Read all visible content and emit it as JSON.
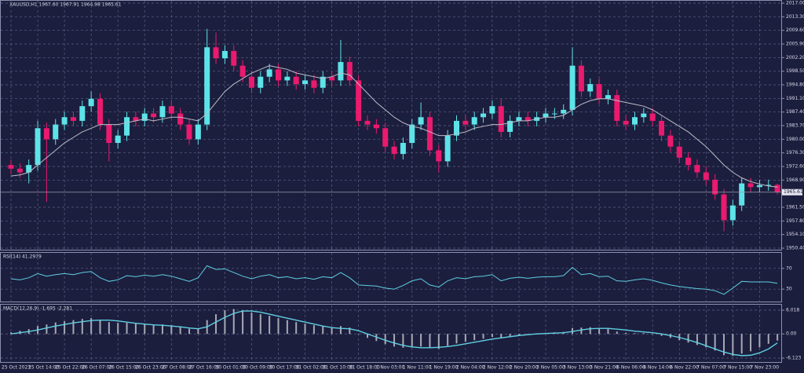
{
  "chart_data": [
    {
      "type": "candlestick",
      "title": "XAUUSD,H1  1967.60 1967.91 1964.98 1965.61",
      "open": [
        1973,
        1972,
        1971,
        1973,
        1983,
        1980,
        1984,
        1986,
        1985,
        1989,
        1991,
        1984,
        1979,
        1981,
        1986,
        1985,
        1987,
        1986,
        1989,
        1987,
        1984,
        1980,
        1984,
        2005,
        2002,
        2004,
        2000,
        1997,
        1994,
        1997,
        1999,
        1996,
        1997,
        1995,
        1996,
        1994,
        1997,
        1996,
        2001,
        1996,
        1985,
        1984,
        1983,
        1978,
        1976,
        1979,
        1984,
        1986,
        1977,
        1974,
        1981,
        1985,
        1984,
        1986,
        1987,
        1989,
        1982,
        1985,
        1986,
        1985,
        1986,
        1987,
        1987,
        1988,
        2000,
        1993,
        1995,
        1991,
        1992,
        1985,
        1984,
        1986,
        1987,
        1985,
        1981,
        1978,
        1975,
        1973,
        1971,
        1969,
        1965,
        1958,
        1962,
        1968,
        1967,
        1967.5,
        1967.6
      ],
      "high": [
        1974.5,
        1973.5,
        1974.5,
        1985,
        1984.5,
        1985.5,
        1987.5,
        1987.5,
        1990.5,
        1993,
        1992.5,
        1985.5,
        1982.5,
        1987.5,
        1987.5,
        1988.5,
        1988.5,
        1990.5,
        1990.5,
        1988.5,
        1985.5,
        1985.5,
        2010,
        2009,
        2005.5,
        2005.5,
        2001.5,
        1998.5,
        1998.5,
        2000.5,
        2000.5,
        1998.5,
        1998.5,
        1997.5,
        1997.5,
        1998.5,
        1998.5,
        2007,
        2002.5,
        1997.5,
        1986.5,
        1985.5,
        1984.5,
        1979.5,
        1980.5,
        1985.5,
        1990,
        1987.5,
        1978.5,
        1982.5,
        1986.5,
        1986.5,
        1987.5,
        1988.5,
        1990.5,
        1991,
        1986.5,
        1987.5,
        1987.5,
        1987.5,
        1988.5,
        1988.5,
        1989.5,
        2005,
        2001.5,
        1996.5,
        1996.5,
        1993.5,
        1993.5,
        1986.5,
        1987.5,
        1988.5,
        1988.5,
        1986.5,
        1982.5,
        1979.5,
        1976.5,
        1974.5,
        1972.5,
        1970.5,
        1966.5,
        1963.5,
        1969.5,
        1969.5,
        1969,
        1969,
        1967.91
      ],
      "low": [
        1970.5,
        1969.5,
        1968,
        1971.5,
        1963,
        1978.5,
        1982.5,
        1983.5,
        1983.5,
        1987.5,
        1982.5,
        1974,
        1977.5,
        1979.5,
        1983.5,
        1983.5,
        1984.5,
        1984.5,
        1985.5,
        1982.5,
        1978.5,
        1978.5,
        1982.5,
        2000.5,
        2000.5,
        1998.5,
        1995.5,
        1992.5,
        1992.5,
        1995.5,
        1994.5,
        1994.5,
        1993.5,
        1993.5,
        1992.5,
        1992.5,
        1994.5,
        1994.5,
        1994.5,
        1983.5,
        1982.5,
        1981.5,
        1976.5,
        1974.5,
        1974.5,
        1977.5,
        1982.5,
        1975.5,
        1971,
        1972.5,
        1979.5,
        1982.5,
        1982.5,
        1984.5,
        1985.5,
        1980.5,
        1980.5,
        1983.5,
        1983.5,
        1983.5,
        1984.5,
        1985.5,
        1985.5,
        1986.5,
        1991.5,
        1991.5,
        1989.5,
        1989.5,
        1983.5,
        1982.5,
        1982.5,
        1984.5,
        1983.5,
        1979.5,
        1976.5,
        1973.5,
        1971.5,
        1969.5,
        1967.5,
        1963.5,
        1955,
        1956.5,
        1960.5,
        1965.5,
        1965.5,
        1966,
        1964.98
      ],
      "close": [
        1972,
        1971,
        1973,
        1983,
        1980,
        1984,
        1986,
        1985,
        1989,
        1991,
        1984,
        1979,
        1981,
        1986,
        1985,
        1987,
        1986,
        1989,
        1987,
        1984,
        1980,
        1984,
        2005,
        2002,
        2004,
        2000,
        1997,
        1994,
        1997,
        1999,
        1996,
        1997,
        1995,
        1996,
        1994,
        1997,
        1996,
        2001,
        1996,
        1985,
        1984,
        1983,
        1978,
        1976,
        1979,
        1984,
        1986,
        1977,
        1974,
        1981,
        1985,
        1984,
        1986,
        1987,
        1989,
        1982,
        1985,
        1986,
        1985,
        1986,
        1987,
        1987,
        1988,
        2000,
        1993,
        1995,
        1991,
        1992,
        1985,
        1984,
        1986,
        1987,
        1985,
        1981,
        1978,
        1975,
        1973,
        1971,
        1969,
        1965,
        1958,
        1962,
        1968,
        1967,
        1967.5,
        1967.6,
        1965.61
      ],
      "ma": {
        "color": "#bdbdc8",
        "values": [
          1970,
          1970.3,
          1971,
          1973,
          1975,
          1977,
          1979,
          1980.5,
          1982,
          1983,
          1984,
          1984,
          1984,
          1984.5,
          1985,
          1985.5,
          1985,
          1985.5,
          1986,
          1986,
          1985.5,
          1985,
          1987,
          1990,
          1993,
          1995,
          1996.5,
          1998,
          1999,
          2000,
          1999.5,
          1999,
          1998,
          1997.5,
          1997,
          1996.5,
          1997,
          1998,
          1997.5,
          1995,
          1992.5,
          1990,
          1988,
          1986,
          1984.5,
          1983.5,
          1983,
          1982,
          1981,
          1981,
          1981.5,
          1982,
          1983,
          1983.5,
          1984,
          1984,
          1984.5,
          1985,
          1985,
          1985.5,
          1986,
          1986,
          1986.5,
          1988,
          1989.5,
          1990.5,
          1991,
          1991,
          1990.5,
          1990,
          1989.5,
          1989,
          1988,
          1986.5,
          1985,
          1983.5,
          1982,
          1980,
          1978,
          1975.5,
          1973,
          1971,
          1969.5,
          1968.5,
          1967.8,
          1967.3,
          1967
        ]
      },
      "up_color": "#5de3e8",
      "down_color": "#ea1a6e",
      "ylim": [
        1950.4,
        2017
      ],
      "yticks": [
        {
          "value": 2017,
          "label": "2017.00"
        },
        {
          "value": 2013.3,
          "label": "2013.30"
        },
        {
          "value": 2009.6,
          "label": "2009.60"
        },
        {
          "value": 2005.9,
          "label": "2005.90"
        },
        {
          "value": 2002.2,
          "label": "2002.20"
        },
        {
          "value": 1998.5,
          "label": "1998.50"
        },
        {
          "value": 1994.8,
          "label": "1994.80"
        },
        {
          "value": 1991.1,
          "label": "1991.10"
        },
        {
          "value": 1987.4,
          "label": "1987.40"
        },
        {
          "value": 1983.7,
          "label": "1983.70"
        },
        {
          "value": 1980,
          "label": "1980.00"
        },
        {
          "value": 1976.3,
          "label": "1976.30"
        },
        {
          "value": 1972.6,
          "label": "1972.60"
        },
        {
          "value": 1968.9,
          "label": "1968.90"
        },
        {
          "value": 1961.5,
          "label": "1961.50"
        },
        {
          "value": 1957.8,
          "label": "1957.80"
        },
        {
          "value": 1954.1,
          "label": "1954.10"
        },
        {
          "value": 1950.4,
          "label": "1950.40"
        }
      ],
      "grid": true
    },
    {
      "type": "line",
      "title": "RSI(14) 41.2979",
      "color": "#5ecfe0",
      "values": [
        50,
        48,
        52,
        60,
        55,
        58,
        60,
        58,
        62,
        64,
        52,
        45,
        48,
        56,
        54,
        57,
        55,
        58,
        55,
        50,
        45,
        52,
        75,
        68,
        69,
        62,
        55,
        50,
        55,
        58,
        52,
        54,
        50,
        52,
        49,
        54,
        52,
        62,
        52,
        38,
        37,
        36,
        32,
        30,
        37,
        46,
        50,
        38,
        34,
        46,
        52,
        50,
        54,
        55,
        58,
        46,
        51,
        53,
        51,
        53,
        54,
        54,
        56,
        72,
        58,
        60,
        54,
        55,
        46,
        45,
        48,
        50,
        47,
        42,
        38,
        35,
        33,
        31,
        30,
        27,
        20,
        32,
        45,
        44,
        44,
        44,
        41.2979
      ],
      "ylim": [
        0,
        100
      ],
      "yticks": [
        70,
        30
      ],
      "grid": true
    },
    {
      "type": "macd",
      "title": "MACD(12,26,9) -1.695 -2.281",
      "categories": [
        "25 Oct 2023",
        null,
        null,
        "25 Oct 14:00",
        null,
        null,
        "25 Oct 22:00",
        null,
        null,
        "26 Oct 07:00",
        null,
        null,
        "26 Oct 15:00",
        null,
        null,
        "26 Oct 23:00",
        null,
        null,
        "27 Oct 08:00",
        null,
        null,
        "27 Oct 16:00",
        null,
        null,
        "30 Oct 01:00",
        null,
        null,
        "30 Oct 09:00",
        null,
        null,
        "30 Oct 17:00",
        null,
        null,
        "31 Oct 02:00",
        null,
        null,
        "31 Oct 10:00",
        null,
        null,
        "31 Oct 18:00",
        null,
        null,
        "1 Nov 03:00",
        null,
        null,
        "1 Nov 11:00",
        null,
        null,
        "1 Nov 19:00",
        null,
        null,
        "2 Nov 04:00",
        null,
        null,
        "2 Nov 12:00",
        null,
        null,
        "2 Nov 20:00",
        null,
        null,
        "3 Nov 05:00",
        null,
        null,
        "3 Nov 13:00",
        null,
        null,
        "3 Nov 21:00",
        null,
        null,
        "6 Nov 06:00",
        null,
        null,
        "6 Nov 14:00",
        null,
        null,
        "6 Nov 22:00",
        null,
        null,
        "7 Nov 07:00",
        null,
        null,
        "7 Nov 15:00",
        null,
        null,
        "7 Nov 23:00",
        null,
        null
      ],
      "series": [
        {
          "type": "bar",
          "color": "#a9a9b4",
          "values": [
            0.4,
            0.8,
            1.2,
            2,
            2.4,
            2.9,
            3.2,
            3.5,
            3.8,
            4,
            3.6,
            3,
            2.8,
            2.8,
            2.6,
            2.6,
            2.4,
            2.4,
            2.2,
            1.8,
            1.3,
            1.4,
            3.5,
            5,
            6,
            6.3,
            6,
            5.4,
            5,
            4.6,
            4,
            3.5,
            3,
            2.6,
            2.2,
            2,
            1.7,
            2,
            1.6,
            0,
            -1,
            -1.8,
            -2.6,
            -3.2,
            -3.5,
            -3.4,
            -3.2,
            -3.6,
            -3.8,
            -3,
            -2.4,
            -2,
            -1.6,
            -1.2,
            -0.8,
            -1,
            -0.6,
            -0.3,
            -0.1,
            0.1,
            0.3,
            0.4,
            0.5,
            1.5,
            1.6,
            1.7,
            1.4,
            1.3,
            0.6,
            0.3,
            0.2,
            0.2,
            0,
            -0.5,
            -1,
            -1.6,
            -2.2,
            -2.8,
            -3.4,
            -4.2,
            -5.4,
            -5.6,
            -5,
            -4.4,
            -3.4,
            -2.5,
            -1.695
          ]
        },
        {
          "type": "line",
          "color": "#5ecfe0",
          "values": [
            0,
            0.3,
            0.6,
            1,
            1.5,
            2,
            2.4,
            2.8,
            3.1,
            3.4,
            3.5,
            3.5,
            3.3,
            3,
            2.7,
            2.5,
            2.3,
            2.2,
            2,
            1.8,
            1.5,
            1.3,
            1.8,
            3,
            4.2,
            5.2,
            5.8,
            5.8,
            5.5,
            5,
            4.5,
            4,
            3.5,
            3,
            2.5,
            2,
            1.6,
            1.4,
            1.3,
            0.8,
            0,
            -0.8,
            -1.6,
            -2.3,
            -2.9,
            -3.3,
            -3.5,
            -3.5,
            -3.4,
            -3.2,
            -2.9,
            -2.5,
            -2.1,
            -1.7,
            -1.3,
            -1,
            -0.7,
            -0.4,
            -0.2,
            0,
            0.1,
            0.2,
            0.3,
            0.6,
            1,
            1.3,
            1.4,
            1.4,
            1.2,
            1,
            0.7,
            0.5,
            0.3,
            0,
            -0.4,
            -0.9,
            -1.5,
            -2.2,
            -3,
            -3.8,
            -4.6,
            -5.2,
            -5.5,
            -5.4,
            -4.8,
            -3.8,
            -2.281
          ]
        }
      ],
      "ylim": [
        -6.123,
        6.018
      ],
      "yticks": [
        6.018,
        {
          "value": 0,
          "label": "0.00"
        },
        -6.123
      ],
      "grid": true
    }
  ]
}
